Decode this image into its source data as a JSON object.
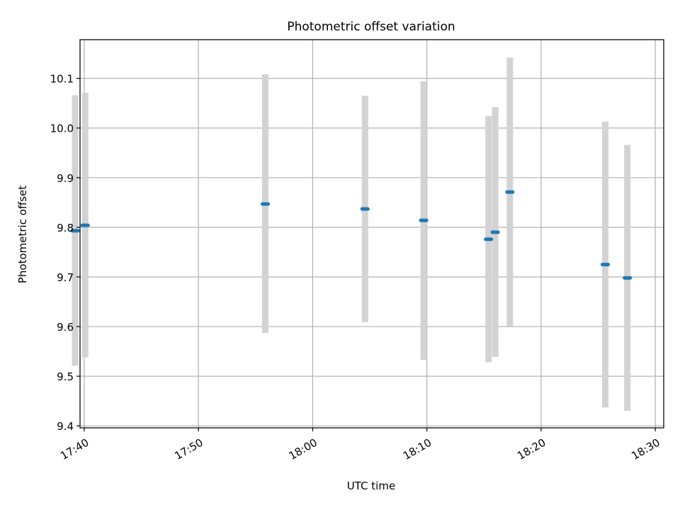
{
  "chart_data": {
    "type": "scatter",
    "title": "Photometric offset variation",
    "xlabel": "UTC time",
    "ylabel": "Photometric offset",
    "grid": true,
    "xlim": [
      "17:39:38",
      "18:30:44"
    ],
    "ylim": [
      9.396,
      10.178
    ],
    "x_tick_labels": [
      "17:40",
      "17:50",
      "18:00",
      "18:10",
      "18:20",
      "18:30"
    ],
    "y_tick_labels": [
      "9.4",
      "9.5",
      "9.6",
      "9.7",
      "9.8",
      "9.9",
      "10.0",
      "10.1"
    ],
    "y_ticks": [
      9.4,
      9.5,
      9.6,
      9.7,
      9.8,
      9.9,
      10.0,
      10.1
    ],
    "x_ticks": [
      "17:40:00",
      "17:50:00",
      "18:00:00",
      "18:10:00",
      "18:20:00",
      "18:30:00"
    ],
    "series": [
      {
        "points": [
          {
            "x": "17:39:12",
            "y": 9.793,
            "low": 9.521,
            "high": 10.066
          },
          {
            "x": "17:40:05",
            "y": 9.804,
            "low": 9.538,
            "high": 10.071
          },
          {
            "x": "17:55:51",
            "y": 9.847,
            "low": 9.587,
            "high": 10.108
          },
          {
            "x": "18:04:35",
            "y": 9.837,
            "low": 9.609,
            "high": 10.065
          },
          {
            "x": "18:09:43",
            "y": 9.814,
            "low": 9.533,
            "high": 10.094
          },
          {
            "x": "18:15:24",
            "y": 9.776,
            "low": 9.528,
            "high": 10.024
          },
          {
            "x": "18:15:59",
            "y": 9.79,
            "low": 9.539,
            "high": 10.042
          },
          {
            "x": "18:17:16",
            "y": 9.871,
            "low": 9.601,
            "high": 10.142
          },
          {
            "x": "18:25:37",
            "y": 9.725,
            "low": 9.437,
            "high": 10.013
          },
          {
            "x": "18:27:33",
            "y": 9.698,
            "low": 9.43,
            "high": 9.966
          }
        ]
      }
    ],
    "colors": {
      "marker": "#1f77b4",
      "errorbar": "#d3d3d3",
      "grid": "#b0b0b0",
      "axes": "#000000"
    }
  }
}
